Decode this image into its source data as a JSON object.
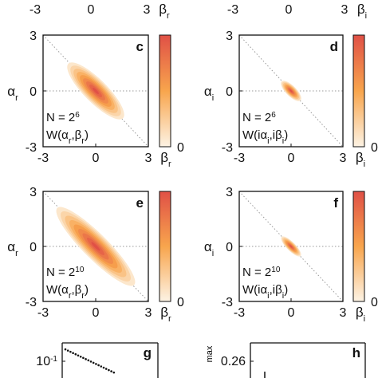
{
  "top_axis": {
    "left": {
      "ticks": [
        "-3",
        "0",
        "3"
      ],
      "label": "β",
      "label_sub": "r"
    },
    "right": {
      "ticks": [
        "-3",
        "0",
        "3"
      ],
      "label": "β",
      "label_sub": "i"
    }
  },
  "colors": {
    "cmap_low": "#fdf3e4",
    "cmap_mid": "#f8a54d",
    "cmap_high": "#e05046",
    "frame": "#111111",
    "diag": "#9a9a9a"
  },
  "chart_data": [
    {
      "type": "heatmap",
      "panel": "c",
      "xlabel": "β",
      "xlabel_sub": "r",
      "ylabel": "α",
      "ylabel_sub": "r",
      "xlim": [
        -3,
        3
      ],
      "ylim": [
        -3,
        3
      ],
      "xticks": [
        "-3",
        "0",
        "3"
      ],
      "yticks": [
        "3",
        "0",
        "-3"
      ],
      "ann_line1": "N = 2",
      "ann_line1_sup": "6",
      "ann_line2_prefix": "W(α",
      "ann_line2_sub1": "r",
      "ann_line2_mid": ",β",
      "ann_line2_sub2": "r",
      "ann_line2_suffix": ")",
      "colorbar_ticks": [
        "0"
      ],
      "distribution": {
        "center": [
          0,
          0
        ],
        "sigma_major": 2.2,
        "sigma_minor": 0.62,
        "angle_deg": -45
      }
    },
    {
      "type": "heatmap",
      "panel": "d",
      "xlabel": "β",
      "xlabel_sub": "i",
      "ylabel": "α",
      "ylabel_sub": "i",
      "xlim": [
        -3,
        3
      ],
      "ylim": [
        -3,
        3
      ],
      "xticks": [
        "-3",
        "0",
        "3"
      ],
      "yticks": [
        "3",
        "0",
        "-3"
      ],
      "ann_line1": "N = 2",
      "ann_line1_sup": "6",
      "ann_line2_prefix": "W(iα",
      "ann_line2_sub1": "i",
      "ann_line2_mid": ",iβ",
      "ann_line2_sub2": "i",
      "ann_line2_suffix": ")",
      "colorbar_ticks": [
        "0"
      ],
      "distribution": {
        "center": [
          0,
          0
        ],
        "sigma_major": 0.78,
        "sigma_minor": 0.28,
        "angle_deg": -45
      }
    },
    {
      "type": "heatmap",
      "panel": "e",
      "xlabel": "β",
      "xlabel_sub": "r",
      "ylabel": "α",
      "ylabel_sub": "r",
      "xlim": [
        -3,
        3
      ],
      "ylim": [
        -3,
        3
      ],
      "xticks": [
        "-3",
        "0",
        "3"
      ],
      "yticks": [
        "3",
        "0",
        "-3"
      ],
      "ann_line1": "N = 2",
      "ann_line1_sup": "10",
      "ann_line2_prefix": "W(α",
      "ann_line2_sub1": "r",
      "ann_line2_mid": ",β",
      "ann_line2_sub2": "r",
      "ann_line2_suffix": ")",
      "colorbar_ticks": [
        "0"
      ],
      "distribution": {
        "center": [
          0,
          0
        ],
        "sigma_major": 3.1,
        "sigma_minor": 0.68,
        "angle_deg": -45
      }
    },
    {
      "type": "heatmap",
      "panel": "f",
      "xlabel": "β",
      "xlabel_sub": "i",
      "ylabel": "α",
      "ylabel_sub": "i",
      "xlim": [
        -3,
        3
      ],
      "ylim": [
        -3,
        3
      ],
      "xticks": [
        "-3",
        "0",
        "3"
      ],
      "yticks": [
        "3",
        "0",
        "-3"
      ],
      "ann_line1": "N = 2",
      "ann_line1_sup": "10",
      "ann_line2_prefix": "W(iα",
      "ann_line2_sub1": "i",
      "ann_line2_mid": ",iβ",
      "ann_line2_sub2": "i",
      "ann_line2_suffix": ")",
      "colorbar_ticks": [
        "0"
      ],
      "distribution": {
        "center": [
          0,
          0
        ],
        "sigma_major": 0.78,
        "sigma_minor": 0.24,
        "angle_deg": -45
      }
    },
    {
      "type": "line",
      "panel": "g",
      "ytick_base": "10",
      "ytick_exp": "-1",
      "series": [
        {
          "y_log10": [
            -0.98,
            -1.0,
            -1.02,
            -1.04,
            -1.06,
            -1.08,
            -1.1,
            -1.12,
            -1.14,
            -1.16,
            -1.18,
            -1.2,
            -1.22,
            -1.24,
            -1.26,
            -1.28,
            -1.3,
            -1.32,
            -1.34,
            -1.36
          ]
        }
      ]
    },
    {
      "type": "line",
      "panel": "h",
      "ytick": "0.26",
      "ylabel_fragment": "max"
    }
  ]
}
